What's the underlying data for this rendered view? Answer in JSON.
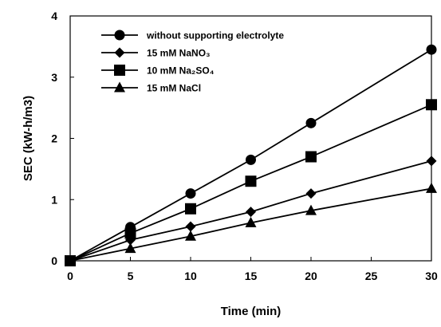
{
  "chart_data": {
    "type": "line",
    "xlabel": "Time (min)",
    "ylabel": "SEC (kW-h/m3)",
    "xlim": [
      0,
      30
    ],
    "ylim": [
      0,
      4
    ],
    "xticks": [
      0,
      5,
      10,
      15,
      20,
      25,
      30
    ],
    "yticks": [
      0,
      1,
      2,
      3,
      4
    ],
    "grid": false,
    "legend_position": "top-left",
    "x": [
      0,
      5,
      10,
      15,
      20,
      30
    ],
    "series": [
      {
        "name": "without supporting electrolyte",
        "marker": "circle",
        "color": "#000000",
        "values": [
          0,
          0.55,
          1.1,
          1.65,
          2.25,
          3.45
        ]
      },
      {
        "name": "15 mM NaNO₃",
        "marker": "diamond",
        "color": "#000000",
        "values": [
          0,
          0.34,
          0.56,
          0.8,
          1.1,
          1.63
        ]
      },
      {
        "name": "10 mM Na₂SO₄",
        "marker": "square",
        "color": "#000000",
        "values": [
          0,
          0.45,
          0.85,
          1.3,
          1.7,
          2.55
        ]
      },
      {
        "name": "15 mM NaCl",
        "marker": "triangle",
        "color": "#000000",
        "values": [
          0,
          0.2,
          0.4,
          0.62,
          0.82,
          1.18
        ]
      }
    ]
  }
}
